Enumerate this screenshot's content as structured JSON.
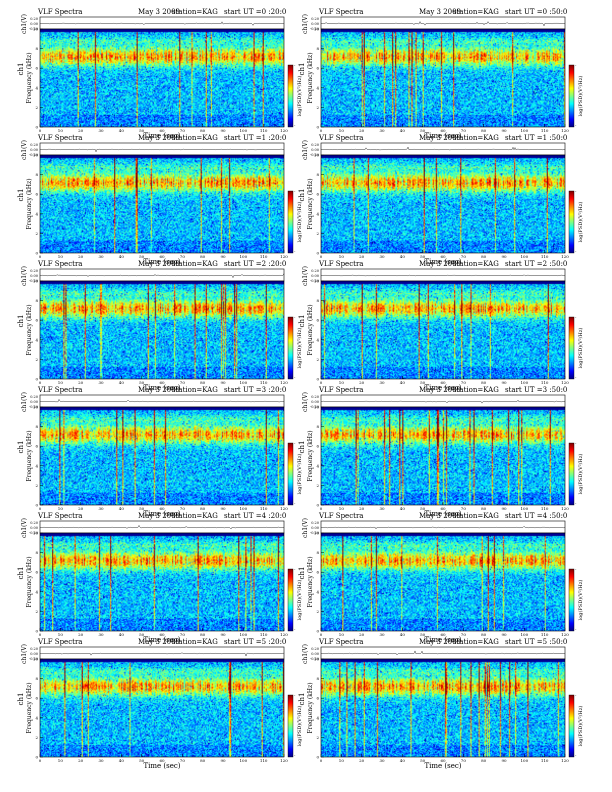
{
  "chart_data": [
    {
      "type": "heatmap",
      "title": "VLF Spectra",
      "date": "May 3 2009",
      "station": "station=KAG",
      "start": "start  UT =0 :20:0",
      "top_ylabel": "ch1(V)",
      "top_yticks": [
        "0.20",
        "0.00",
        "-0.20"
      ],
      "ylabel_ch": "ch1",
      "ylabel": "Frequency  (kHz)",
      "yticks": [
        "0",
        "2",
        "4",
        "6",
        "8",
        "10"
      ],
      "ylim": [
        0,
        10
      ],
      "xlabel": "Time  (sec)",
      "xticks": [
        "0",
        "10",
        "20",
        "30",
        "40",
        "50",
        "60",
        "70",
        "80",
        "90",
        "100",
        "110",
        "120"
      ],
      "xlim": [
        0,
        120
      ],
      "cbar_label": "log(PSD)(V²/Hz)",
      "cbar_ticks": [
        "-",
        "-"
      ]
    },
    {
      "type": "heatmap",
      "title": "VLF Spectra",
      "date": "May 3 2009",
      "station": "station=KAG",
      "start": "start  UT =0 :50:0",
      "top_ylabel": "ch1(V)",
      "top_yticks": [
        "0.20",
        "0.00",
        "-0.20"
      ],
      "ylabel_ch": "ch1",
      "ylabel": "Frequency  (kHz)",
      "yticks": [
        "0",
        "2",
        "4",
        "6",
        "8",
        "10"
      ],
      "ylim": [
        0,
        10
      ],
      "xlabel": "Time  (sec)",
      "xticks": [
        "0",
        "10",
        "20",
        "30",
        "40",
        "50",
        "60",
        "70",
        "80",
        "90",
        "100",
        "110",
        "120"
      ],
      "xlim": [
        0,
        120
      ],
      "cbar_label": "log(PSD)(V²/Hz)",
      "cbar_ticks": [
        "-",
        "-"
      ]
    },
    {
      "type": "heatmap",
      "title": "VLF Spectra",
      "date": "May 3 2009",
      "station": "station=KAG",
      "start": "start  UT =1 :20:0",
      "top_ylabel": "ch1(V)",
      "top_yticks": [
        "0.20",
        "0.00",
        "-0.20"
      ],
      "ylabel_ch": "ch1",
      "ylabel": "Frequency  (kHz)",
      "yticks": [
        "0",
        "2",
        "4",
        "6",
        "8",
        "10"
      ],
      "ylim": [
        0,
        10
      ],
      "xlabel": "Time  (sec)",
      "xticks": [
        "0",
        "10",
        "20",
        "30",
        "40",
        "50",
        "60",
        "70",
        "80",
        "90",
        "100",
        "110",
        "120"
      ],
      "xlim": [
        0,
        120
      ],
      "cbar_label": "log(PSD)(V²/Hz)",
      "cbar_ticks": [
        "-",
        "-"
      ]
    },
    {
      "type": "heatmap",
      "title": "VLF Spectra",
      "date": "May 3 2009",
      "station": "station=KAG",
      "start": "start  UT =1 :50:0",
      "top_ylabel": "ch1(V)",
      "top_yticks": [
        "0.20",
        "0.00",
        "-0.20"
      ],
      "ylabel_ch": "ch1",
      "ylabel": "Frequency  (kHz)",
      "yticks": [
        "0",
        "2",
        "4",
        "6",
        "8",
        "10"
      ],
      "ylim": [
        0,
        10
      ],
      "xlabel": "Time  (sec)",
      "xticks": [
        "0",
        "10",
        "20",
        "30",
        "40",
        "50",
        "60",
        "70",
        "80",
        "90",
        "100",
        "110",
        "120"
      ],
      "xlim": [
        0,
        120
      ],
      "cbar_label": "log(PSD)(V²/Hz)",
      "cbar_ticks": [
        "-",
        "-"
      ]
    },
    {
      "type": "heatmap",
      "title": "VLF Spectra",
      "date": "May 3 2009",
      "station": "station=KAG",
      "start": "start  UT =2 :20:0",
      "top_ylabel": "ch1(V)",
      "top_yticks": [
        "0.20",
        "0.00",
        "-0.20"
      ],
      "ylabel_ch": "ch1",
      "ylabel": "Frequency  (kHz)",
      "yticks": [
        "0",
        "2",
        "4",
        "6",
        "8",
        "10"
      ],
      "ylim": [
        0,
        10
      ],
      "xlabel": "Time  (sec)",
      "xticks": [
        "0",
        "10",
        "20",
        "30",
        "40",
        "50",
        "60",
        "70",
        "80",
        "90",
        "100",
        "110",
        "120"
      ],
      "xlim": [
        0,
        120
      ],
      "cbar_label": "log(PSD)(V²/Hz)",
      "cbar_ticks": [
        "-",
        "-"
      ]
    },
    {
      "type": "heatmap",
      "title": "VLF Spectra",
      "date": "May 3 2009",
      "station": "station=KAG",
      "start": "start  UT =2 :50:0",
      "top_ylabel": "ch1(V)",
      "top_yticks": [
        "0.20",
        "0.00",
        "-0.20"
      ],
      "ylabel_ch": "ch1",
      "ylabel": "Frequency  (kHz)",
      "yticks": [
        "0",
        "2",
        "4",
        "6",
        "8",
        "10"
      ],
      "ylim": [
        0,
        10
      ],
      "xlabel": "Time  (sec)",
      "xticks": [
        "0",
        "10",
        "20",
        "30",
        "40",
        "50",
        "60",
        "70",
        "80",
        "90",
        "100",
        "110",
        "120"
      ],
      "xlim": [
        0,
        120
      ],
      "cbar_label": "log(PSD)(V²/Hz)",
      "cbar_ticks": [
        "-",
        "-"
      ]
    },
    {
      "type": "heatmap",
      "title": "VLF Spectra",
      "date": "May 3 2009",
      "station": "station=KAG",
      "start": "start  UT =3 :20:0",
      "top_ylabel": "ch1(V)",
      "top_yticks": [
        "0.20",
        "0.00",
        "-0.20"
      ],
      "ylabel_ch": "ch1",
      "ylabel": "Frequency  (kHz)",
      "yticks": [
        "0",
        "2",
        "4",
        "6",
        "8",
        "10"
      ],
      "ylim": [
        0,
        10
      ],
      "xlabel": "Time  (sec)",
      "xticks": [
        "0",
        "10",
        "20",
        "30",
        "40",
        "50",
        "60",
        "70",
        "80",
        "90",
        "100",
        "110",
        "120"
      ],
      "xlim": [
        0,
        120
      ],
      "cbar_label": "log(PSD)(V²/Hz)",
      "cbar_ticks": [
        "-",
        "-"
      ]
    },
    {
      "type": "heatmap",
      "title": "VLF Spectra",
      "date": "May 3 2009",
      "station": "station=KAG",
      "start": "start  UT =3 :50:0",
      "top_ylabel": "ch1(V)",
      "top_yticks": [
        "0.20",
        "0.00",
        "-0.20"
      ],
      "ylabel_ch": "ch1",
      "ylabel": "Frequency  (kHz)",
      "yticks": [
        "0",
        "2",
        "4",
        "6",
        "8",
        "10"
      ],
      "ylim": [
        0,
        10
      ],
      "xlabel": "Time  (sec)",
      "xticks": [
        "0",
        "10",
        "20",
        "30",
        "40",
        "50",
        "60",
        "70",
        "80",
        "90",
        "100",
        "110",
        "120"
      ],
      "xlim": [
        0,
        120
      ],
      "cbar_label": "log(PSD)(V²/Hz)",
      "cbar_ticks": [
        "-",
        "-"
      ]
    },
    {
      "type": "heatmap",
      "title": "VLF Spectra",
      "date": "May 3 2009",
      "station": "station=KAG",
      "start": "start  UT =4 :20:0",
      "top_ylabel": "ch1(V)",
      "top_yticks": [
        "0.20",
        "0.00",
        "-0.20"
      ],
      "ylabel_ch": "ch1",
      "ylabel": "Frequency  (kHz)",
      "yticks": [
        "0",
        "2",
        "4",
        "6",
        "8",
        "10"
      ],
      "ylim": [
        0,
        10
      ],
      "xlabel": "Time  (sec)",
      "xticks": [
        "0",
        "10",
        "20",
        "30",
        "40",
        "50",
        "60",
        "70",
        "80",
        "90",
        "100",
        "110",
        "120"
      ],
      "xlim": [
        0,
        120
      ],
      "cbar_label": "log(PSD)(V²/Hz)",
      "cbar_ticks": [
        "-",
        "-"
      ]
    },
    {
      "type": "heatmap",
      "title": "VLF Spectra",
      "date": "May 3 2009",
      "station": "station=KAG",
      "start": "start  UT =4 :50:0",
      "top_ylabel": "ch1(V)",
      "top_yticks": [
        "0.20",
        "0.00",
        "-0.20"
      ],
      "ylabel_ch": "ch1",
      "ylabel": "Frequency  (kHz)",
      "yticks": [
        "0",
        "2",
        "4",
        "6",
        "8",
        "10"
      ],
      "ylim": [
        0,
        10
      ],
      "xlabel": "Time  (sec)",
      "xticks": [
        "0",
        "10",
        "20",
        "30",
        "40",
        "50",
        "60",
        "70",
        "80",
        "90",
        "100",
        "110",
        "120"
      ],
      "xlim": [
        0,
        120
      ],
      "cbar_label": "log(PSD)(V²/Hz)",
      "cbar_ticks": [
        "-",
        "-"
      ]
    },
    {
      "type": "heatmap",
      "title": "VLF Spectra",
      "date": "May 3 2009",
      "station": "station=KAG",
      "start": "start  UT =5 :20:0",
      "top_ylabel": "ch1(V)",
      "top_yticks": [
        "0.20",
        "0.00",
        "-0.20"
      ],
      "ylabel_ch": "ch1",
      "ylabel": "Frequency  (kHz)",
      "yticks": [
        "0",
        "2",
        "4",
        "6",
        "8",
        "10"
      ],
      "ylim": [
        0,
        10
      ],
      "xlabel": "Time  (sec)",
      "xticks": [
        "0",
        "10",
        "20",
        "30",
        "40",
        "50",
        "60",
        "70",
        "80",
        "90",
        "100",
        "110",
        "120"
      ],
      "xlim": [
        0,
        120
      ],
      "cbar_label": "log(PSD)(V²/Hz)",
      "cbar_ticks": [
        "-",
        "-"
      ]
    },
    {
      "type": "heatmap",
      "title": "VLF Spectra",
      "date": "May 3 2009",
      "station": "station=KAG",
      "start": "start  UT =5 :50:0",
      "top_ylabel": "ch1(V)",
      "top_yticks": [
        "0.20",
        "0.00",
        "-0.20"
      ],
      "ylabel_ch": "ch1",
      "ylabel": "Frequency  (kHz)",
      "yticks": [
        "0",
        "2",
        "4",
        "6",
        "8",
        "10"
      ],
      "ylim": [
        0,
        10
      ],
      "xlabel": "Time  (sec)",
      "xticks": [
        "0",
        "10",
        "20",
        "30",
        "40",
        "50",
        "60",
        "70",
        "80",
        "90",
        "100",
        "110",
        "120"
      ],
      "xlim": [
        0,
        120
      ],
      "cbar_label": "log(PSD)(V²/Hz)",
      "cbar_ticks": [
        "-",
        "-"
      ]
    }
  ],
  "colors": {
    "colormap": [
      "#00007f",
      "#0000ff",
      "#0080ff",
      "#00ffff",
      "#80ff80",
      "#ffff00",
      "#ff8000",
      "#ff0000",
      "#7f0000"
    ]
  }
}
